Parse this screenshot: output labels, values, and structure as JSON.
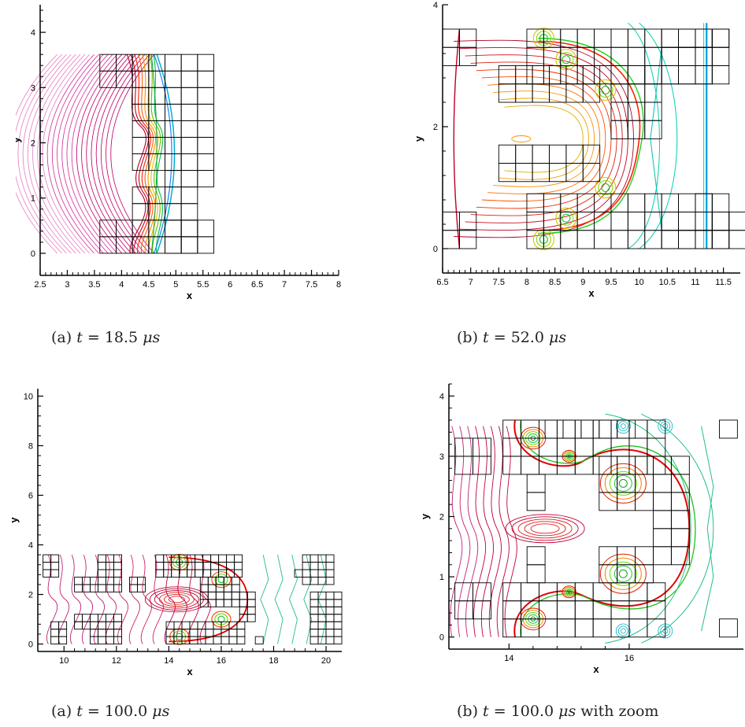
{
  "chart_data": [
    {
      "type": "contour",
      "caption": {
        "label": "(a)",
        "time": "18.5",
        "unit": "μs",
        "suffix": ""
      },
      "xlabel": "x",
      "ylabel": "y",
      "xlim": [
        2.5,
        8
      ],
      "ylim": [
        -0.4,
        4.5
      ],
      "xticks": [
        "2.5",
        "3",
        "3.5",
        "4",
        "4.5",
        "5",
        "5.5",
        "6",
        "6.5",
        "7",
        "7.5",
        "8"
      ],
      "yticks": [
        "0",
        "1",
        "2",
        "3",
        "4"
      ]
    },
    {
      "type": "contour",
      "caption": {
        "label": "(b)",
        "time": "52.0",
        "unit": "μs",
        "suffix": ""
      },
      "xlabel": "x",
      "ylabel": "y",
      "xlim": [
        6.5,
        11.8
      ],
      "ylim": [
        -0.4,
        4.0
      ],
      "xticks": [
        "6.5",
        "7",
        "7.5",
        "8",
        "8.5",
        "9",
        "9.5",
        "10",
        "10.5",
        "11",
        "11.5"
      ],
      "yticks": [
        "0",
        "2",
        "4"
      ]
    },
    {
      "type": "contour",
      "caption": {
        "label": "(a)",
        "time": "100.0",
        "unit": "μs",
        "suffix": ""
      },
      "xlabel": "x",
      "ylabel": "y",
      "xlim": [
        9,
        20.6
      ],
      "ylim": [
        -0.3,
        10.3
      ],
      "xticks": [
        "10",
        "12",
        "14",
        "16",
        "18",
        "20"
      ],
      "yticks": [
        "0",
        "2",
        "4",
        "6",
        "8",
        "10"
      ]
    },
    {
      "type": "contour",
      "caption": {
        "label": "(b)",
        "time": "100.0",
        "unit": "μs",
        "suffix": "with zoom"
      },
      "xlabel": "x",
      "ylabel": "y",
      "xlim": [
        13,
        17.9
      ],
      "ylim": [
        -0.2,
        4.2
      ],
      "xticks": [
        "14",
        "16"
      ],
      "yticks": [
        "0",
        "1",
        "2",
        "3",
        "4"
      ]
    }
  ]
}
